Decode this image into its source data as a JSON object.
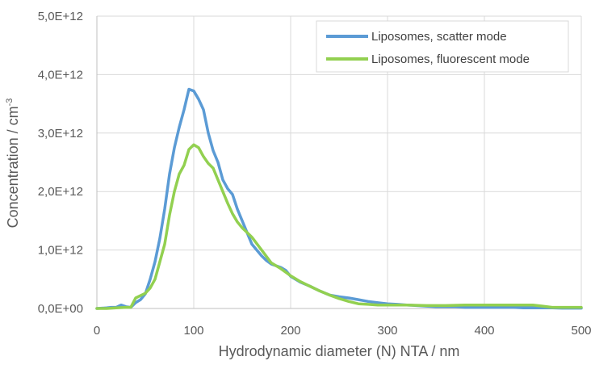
{
  "chart_data": {
    "type": "line",
    "xlabel": "Hydrodynamic diameter (N) NTA / nm",
    "ylabel": "Concentration / cm",
    "ylabel_sup": "-3",
    "xlim": [
      0,
      500
    ],
    "ylim": [
      0,
      5000000000000.0
    ],
    "x_ticks": [
      0,
      100,
      200,
      300,
      400,
      500
    ],
    "x_tick_labels": [
      "0",
      "100",
      "200",
      "300",
      "400",
      "500"
    ],
    "y_ticks": [
      0,
      1000000000000.0,
      2000000000000.0,
      3000000000000.0,
      4000000000000.0,
      5000000000000.0
    ],
    "y_tick_labels": [
      "0,0E+00",
      "1,0E+12",
      "2,0E+12",
      "3,0E+12",
      "4,0E+12",
      "5,0E+12"
    ],
    "grid": "vertical and horizontal",
    "legend_position": "top-right",
    "series": [
      {
        "name": "Liposomes, scatter mode",
        "color": "#5b9bd5",
        "x": [
          0,
          10,
          15,
          20,
          25,
          30,
          35,
          40,
          45,
          50,
          55,
          60,
          65,
          70,
          75,
          80,
          85,
          90,
          95,
          100,
          105,
          110,
          115,
          120,
          125,
          130,
          135,
          140,
          145,
          150,
          155,
          160,
          165,
          170,
          175,
          180,
          185,
          190,
          195,
          200,
          210,
          220,
          230,
          240,
          250,
          260,
          270,
          280,
          290,
          300,
          310,
          320,
          330,
          340,
          350,
          360,
          370,
          380,
          390,
          400,
          410,
          420,
          430,
          440,
          450,
          460,
          470,
          480,
          490,
          500
        ],
        "y": [
          0,
          10000000000.0,
          20000000000.0,
          20000000000.0,
          60000000000.0,
          30000000000.0,
          20000000000.0,
          100000000000.0,
          150000000000.0,
          250000000000.0,
          500000000000.0,
          800000000000.0,
          1200000000000.0,
          1700000000000.0,
          2300000000000.0,
          2750000000000.0,
          3100000000000.0,
          3400000000000.0,
          3750000000000.0,
          3720000000000.0,
          3580000000000.0,
          3400000000000.0,
          3000000000000.0,
          2700000000000.0,
          2500000000000.0,
          2200000000000.0,
          2050000000000.0,
          1950000000000.0,
          1700000000000.0,
          1500000000000.0,
          1300000000000.0,
          1100000000000.0,
          1000000000000.0,
          900000000000.0,
          820000000000.0,
          760000000000.0,
          730000000000.0,
          700000000000.0,
          650000000000.0,
          550000000000.0,
          450000000000.0,
          380000000000.0,
          300000000000.0,
          230000000000.0,
          200000000000.0,
          180000000000.0,
          150000000000.0,
          120000000000.0,
          100000000000.0,
          80000000000.0,
          70000000000.0,
          60000000000.0,
          50000000000.0,
          40000000000.0,
          30000000000.0,
          30000000000.0,
          30000000000.0,
          20000000000.0,
          20000000000.0,
          20000000000.0,
          20000000000.0,
          20000000000.0,
          20000000000.0,
          10000000000.0,
          10000000000.0,
          10000000000.0,
          10000000000.0,
          5000000000.0,
          5000000000.0,
          5000000000.0
        ],
        "x_clean": true
      },
      {
        "name": "Liposomes, fluorescent mode",
        "color": "#92d050",
        "x": [
          0,
          10,
          20,
          30,
          35,
          40,
          45,
          50,
          55,
          60,
          65,
          70,
          75,
          80,
          85,
          90,
          95,
          100,
          105,
          110,
          115,
          120,
          125,
          130,
          135,
          140,
          145,
          150,
          155,
          160,
          170,
          180,
          190,
          200,
          210,
          220,
          230,
          240,
          250,
          260,
          270,
          280,
          290,
          300,
          310,
          320,
          340,
          360,
          380,
          400,
          420,
          440,
          450,
          460,
          470,
          480,
          490,
          500
        ],
        "y": [
          0,
          0,
          10000000000.0,
          20000000000.0,
          20000000000.0,
          180000000000.0,
          220000000000.0,
          260000000000.0,
          350000000000.0,
          500000000000.0,
          800000000000.0,
          1100000000000.0,
          1600000000000.0,
          2000000000000.0,
          2300000000000.0,
          2450000000000.0,
          2720000000000.0,
          2800000000000.0,
          2750000000000.0,
          2600000000000.0,
          2480000000000.0,
          2400000000000.0,
          2200000000000.0,
          2000000000000.0,
          1800000000000.0,
          1620000000000.0,
          1480000000000.0,
          1380000000000.0,
          1300000000000.0,
          1220000000000.0,
          1000000000000.0,
          780000000000.0,
          680000000000.0,
          560000000000.0,
          460000000000.0,
          380000000000.0,
          300000000000.0,
          230000000000.0,
          170000000000.0,
          120000000000.0,
          80000000000.0,
          70000000000.0,
          60000000000.0,
          60000000000.0,
          60000000000.0,
          60000000000.0,
          50000000000.0,
          50000000000.0,
          60000000000.0,
          60000000000.0,
          60000000000.0,
          60000000000.0,
          60000000000.0,
          40000000000.0,
          20000000000.0,
          20000000000.0,
          20000000000.0,
          20000000000.0
        ]
      }
    ]
  }
}
